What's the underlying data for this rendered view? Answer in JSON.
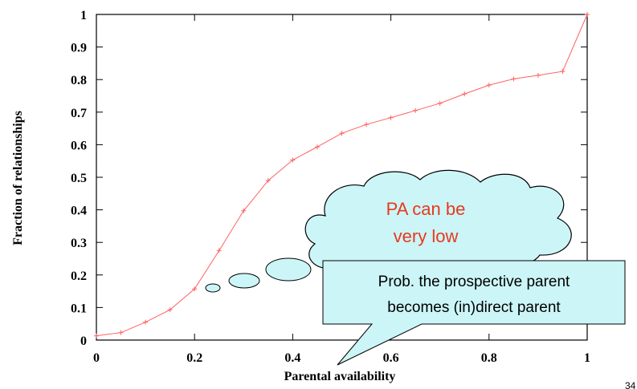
{
  "chart_data": {
    "type": "line",
    "title": "",
    "xlabel": "Parental availability",
    "ylabel": "Fraction of relationships",
    "xlim": [
      0,
      1
    ],
    "ylim": [
      0,
      1
    ],
    "x_ticks": [
      "0",
      "0.2",
      "0.4",
      "0.6",
      "0.8",
      "1"
    ],
    "y_ticks": [
      "0",
      "0.1",
      "0.2",
      "0.3",
      "0.4",
      "0.5",
      "0.6",
      "0.7",
      "0.8",
      "0.9",
      "1"
    ],
    "series": [
      {
        "color": "#ff6060",
        "marker": "plus",
        "x": [
          0,
          0.05,
          0.1,
          0.15,
          0.2,
          0.25,
          0.3,
          0.35,
          0.4,
          0.45,
          0.5,
          0.55,
          0.6,
          0.65,
          0.7,
          0.75,
          0.8,
          0.85,
          0.9,
          0.95,
          1
        ],
        "y": [
          0.013,
          0.023,
          0.055,
          0.093,
          0.157,
          0.275,
          0.397,
          0.49,
          0.553,
          0.593,
          0.635,
          0.662,
          0.683,
          0.705,
          0.727,
          0.756,
          0.783,
          0.802,
          0.813,
          0.825,
          1.0
        ]
      }
    ],
    "grid": false,
    "annotations": {
      "cloud_text": [
        "PA can be",
        "very low"
      ],
      "callout_text": [
        "Prob. the prospective parent",
        "becomes (in)direct parent"
      ]
    }
  },
  "colors": {
    "line": "#ff6060",
    "cloud_fill": "#ccf5f7",
    "cloud_text": "#e8391d",
    "callout_fill": "#ccf5f7"
  },
  "page_number": "34"
}
